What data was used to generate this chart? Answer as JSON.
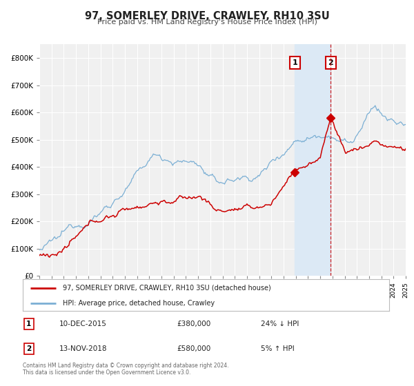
{
  "title": "97, SOMERLEY DRIVE, CRAWLEY, RH10 3SU",
  "subtitle": "Price paid vs. HM Land Registry's House Price Index (HPI)",
  "legend_label_red": "97, SOMERLEY DRIVE, CRAWLEY, RH10 3SU (detached house)",
  "legend_label_blue": "HPI: Average price, detached house, Crawley",
  "annotation1_date": "10-DEC-2015",
  "annotation1_price": "£380,000",
  "annotation1_hpi": "24% ↓ HPI",
  "annotation1_year": 2015.92,
  "annotation1_value": 380000,
  "annotation2_date": "13-NOV-2018",
  "annotation2_price": "£580,000",
  "annotation2_hpi": "5% ↑ HPI",
  "annotation2_year": 2018.87,
  "annotation2_value": 580000,
  "footer_line1": "Contains HM Land Registry data © Crown copyright and database right 2024.",
  "footer_line2": "This data is licensed under the Open Government Licence v3.0.",
  "background_color": "#ffffff",
  "plot_bg_color": "#f0f0f0",
  "grid_color": "#ffffff",
  "red_color": "#cc0000",
  "blue_color": "#7bafd4",
  "shaded_region_color": "#dce9f5",
  "ylim_max": 850000,
  "ylim_min": 0,
  "xlim_min": 1995,
  "xlim_max": 2025
}
